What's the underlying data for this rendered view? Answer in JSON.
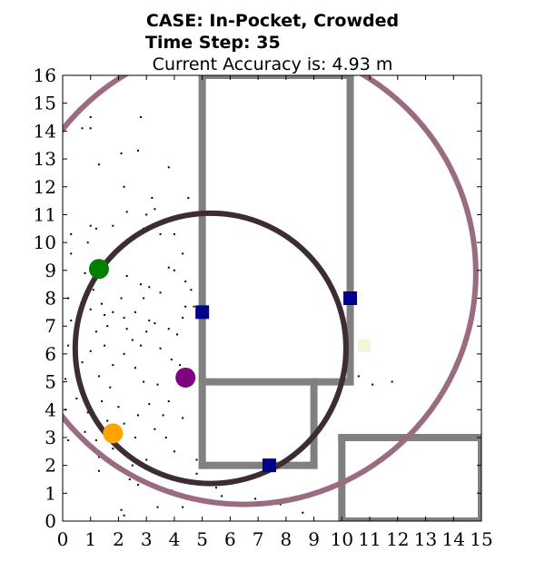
{
  "chart_data": {
    "type": "scatter",
    "title_lines": [
      "CASE: In-Pocket, Crowded",
      "Time Step: 35",
      "Current Accuracy is: 4.93 m"
    ],
    "xlabel": "",
    "ylabel": "",
    "xlim": [
      0,
      15
    ],
    "ylim": [
      0,
      16
    ],
    "x_ticks": [
      "0",
      "1",
      "2",
      "3",
      "4",
      "5",
      "6",
      "7",
      "8",
      "9",
      "10",
      "11",
      "12",
      "13",
      "14",
      "15"
    ],
    "y_ticks": [
      "0",
      "1",
      "2",
      "3",
      "4",
      "5",
      "6",
      "7",
      "8",
      "9",
      "10",
      "11",
      "12",
      "13",
      "14",
      "15",
      "16"
    ],
    "grid": false,
    "walls": {
      "color": "#808080",
      "segments": [
        [
          [
            5.0,
            16.0
          ],
          [
            5.0,
            2.0
          ]
        ],
        [
          [
            5.0,
            16.0
          ],
          [
            10.3,
            16.0
          ]
        ],
        [
          [
            10.3,
            16.0
          ],
          [
            10.3,
            5.0
          ]
        ],
        [
          [
            5.0,
            5.0
          ],
          [
            10.3,
            5.0
          ]
        ],
        [
          [
            9.0,
            5.0
          ],
          [
            9.0,
            2.0
          ]
        ],
        [
          [
            5.0,
            2.0
          ],
          [
            9.0,
            2.0
          ]
        ],
        [
          [
            10.0,
            3.0
          ],
          [
            15.0,
            3.0
          ]
        ],
        [
          [
            10.0,
            3.0
          ],
          [
            10.0,
            0.0
          ]
        ],
        [
          [
            15.0,
            3.0
          ],
          [
            15.0,
            0.0
          ]
        ],
        [
          [
            10.0,
            0.0
          ],
          [
            15.0,
            0.0
          ]
        ]
      ]
    },
    "beacons": {
      "color": "#00008b",
      "points": [
        [
          5.0,
          7.5
        ],
        [
          10.3,
          8.0
        ],
        [
          7.4,
          2.0
        ]
      ]
    },
    "faint_marker": {
      "color": "#f5f5dc",
      "point": [
        10.8,
        6.3
      ]
    },
    "circles": [
      {
        "cx": 5.3,
        "cy": 6.2,
        "r": 4.85,
        "color": "#3d2b35"
      },
      {
        "cx": 6.5,
        "cy": 8.9,
        "r": 8.3,
        "color": "#9b6b82"
      }
    ],
    "estimates": [
      {
        "x": 1.3,
        "y": 9.05,
        "color": "#008000"
      },
      {
        "x": 4.4,
        "y": 5.15,
        "color": "#800080"
      },
      {
        "x": 1.8,
        "y": 3.15,
        "color": "#ffa500"
      }
    ],
    "particles": [
      [
        1.0,
        14.5
      ],
      [
        0.7,
        14.1
      ],
      [
        1.0,
        14.1
      ],
      [
        2.8,
        14.5
      ],
      [
        1.3,
        12.8
      ],
      [
        2.1,
        13.2
      ],
      [
        2.7,
        13.3
      ],
      [
        3.8,
        12.7
      ],
      [
        2.2,
        12.0
      ],
      [
        3.2,
        11.6
      ],
      [
        2.3,
        11.1
      ],
      [
        3.3,
        11.2
      ],
      [
        4.5,
        11.6
      ],
      [
        3.0,
        11.0
      ],
      [
        1.2,
        10.5
      ],
      [
        1.0,
        10.6
      ],
      [
        1.8,
        10.6
      ],
      [
        2.9,
        10.5
      ],
      [
        3.5,
        10.3
      ],
      [
        4.0,
        10.3
      ],
      [
        0.3,
        10.3
      ],
      [
        0.9,
        10.0
      ],
      [
        0.3,
        9.6
      ],
      [
        4.3,
        9.6
      ],
      [
        0.8,
        8.9
      ],
      [
        3.8,
        9.1
      ],
      [
        4.0,
        9.0
      ],
      [
        2.3,
        8.8
      ],
      [
        4.4,
        8.6
      ],
      [
        1.1,
        8.3
      ],
      [
        2.8,
        8.5
      ],
      [
        3.1,
        8.4
      ],
      [
        3.5,
        8.2
      ],
      [
        4.6,
        8.3
      ],
      [
        2.1,
        8.0
      ],
      [
        2.9,
        8.0
      ],
      [
        0.2,
        8.0
      ],
      [
        4.4,
        7.7
      ],
      [
        4.7,
        7.7
      ],
      [
        1.0,
        7.6
      ],
      [
        1.4,
        7.8
      ],
      [
        1.8,
        7.5
      ],
      [
        2.2,
        7.3
      ],
      [
        2.6,
        7.5
      ],
      [
        3.1,
        7.2
      ],
      [
        3.3,
        7.1
      ],
      [
        4.3,
        7.3
      ],
      [
        1.5,
        7.4
      ],
      [
        0.3,
        7.2
      ],
      [
        1.2,
        6.8
      ],
      [
        1.6,
        7.0
      ],
      [
        2.3,
        6.9
      ],
      [
        2.5,
        6.5
      ],
      [
        3.0,
        6.8
      ],
      [
        3.8,
        6.9
      ],
      [
        4.1,
        6.7
      ],
      [
        1.5,
        6.3
      ],
      [
        0.2,
        6.3
      ],
      [
        1.0,
        6.1
      ],
      [
        2.2,
        6.0
      ],
      [
        2.8,
        6.3
      ],
      [
        3.5,
        6.2
      ],
      [
        3.9,
        5.8
      ],
      [
        4.2,
        5.6
      ],
      [
        0.7,
        5.7
      ],
      [
        1.8,
        5.6
      ],
      [
        2.6,
        5.5
      ],
      [
        0.1,
        5.1
      ],
      [
        1.3,
        5.2
      ],
      [
        1.7,
        4.8
      ],
      [
        2.9,
        5.0
      ],
      [
        3.4,
        4.9
      ],
      [
        0.5,
        4.4
      ],
      [
        1.4,
        4.3
      ],
      [
        2.0,
        4.1
      ],
      [
        3.1,
        4.2
      ],
      [
        3.8,
        4.3
      ],
      [
        0.1,
        4.0
      ],
      [
        0.9,
        3.9
      ],
      [
        1.6,
        3.6
      ],
      [
        2.7,
        3.8
      ],
      [
        3.6,
        3.8
      ],
      [
        4.3,
        3.7
      ],
      [
        2.2,
        3.5
      ],
      [
        3.3,
        3.3
      ],
      [
        0.8,
        3.2
      ],
      [
        1.2,
        2.9
      ],
      [
        2.6,
        3.0
      ],
      [
        3.7,
        3.0
      ],
      [
        0.2,
        2.9
      ],
      [
        1.8,
        2.6
      ],
      [
        4.0,
        2.5
      ],
      [
        1.3,
        2.3
      ],
      [
        2.5,
        2.0
      ],
      [
        3.0,
        2.2
      ],
      [
        4.8,
        2.2
      ],
      [
        1.3,
        1.8
      ],
      [
        2.4,
        1.5
      ],
      [
        2.7,
        1.3
      ],
      [
        4.8,
        1.7
      ],
      [
        3.9,
        1.1
      ],
      [
        5.5,
        1.2
      ],
      [
        4.1,
        0.9
      ],
      [
        5.7,
        0.9
      ],
      [
        6.9,
        0.8
      ],
      [
        7.8,
        0.6
      ],
      [
        3.4,
        0.5
      ],
      [
        4.3,
        0.5
      ],
      [
        2.1,
        0.4
      ],
      [
        2.2,
        0.2
      ],
      [
        8.6,
        0.3
      ],
      [
        10.6,
        5.2
      ],
      [
        11.1,
        4.9
      ],
      [
        11.8,
        5.0
      ]
    ]
  }
}
